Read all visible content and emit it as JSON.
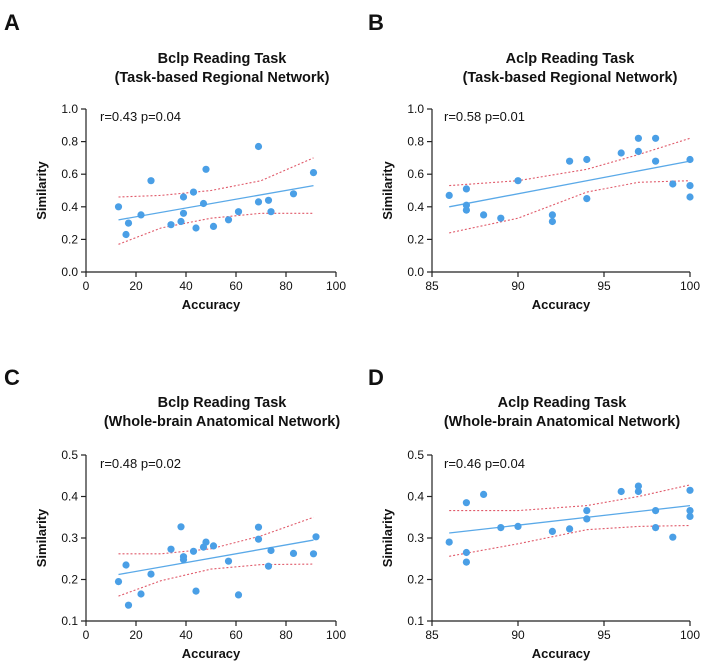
{
  "figure": {
    "panels": [
      "A",
      "B",
      "C",
      "D"
    ]
  },
  "colors": {
    "point": "#4a9fe6",
    "fit_line": "#5aa9e8",
    "ci_band": "#e05a6a",
    "axis": "#222222"
  },
  "chart_data": [
    {
      "panel": "A",
      "type": "scatter",
      "title": [
        "Bclp Reading Task",
        "(Task-based Regional Network)"
      ],
      "xlabel": "Accuracy",
      "ylabel": "Similarity",
      "xlim": [
        0,
        100
      ],
      "ylim": [
        0.0,
        1.0
      ],
      "xticks": [
        0,
        20,
        40,
        60,
        80,
        100
      ],
      "yticks": [
        0.0,
        0.2,
        0.4,
        0.6,
        0.8,
        1.0
      ],
      "xtick_labels": [
        "0",
        "20",
        "40",
        "60",
        "80",
        "100"
      ],
      "ytick_labels": [
        "0.0",
        "0.2",
        "0.4",
        "0.6",
        "0.8",
        "1.0"
      ],
      "annotation": "r=0.43 p=0.04",
      "points": [
        [
          13,
          0.4
        ],
        [
          16,
          0.23
        ],
        [
          17,
          0.3
        ],
        [
          22,
          0.35
        ],
        [
          26,
          0.56
        ],
        [
          34,
          0.29
        ],
        [
          38,
          0.31
        ],
        [
          39,
          0.36
        ],
        [
          39,
          0.46
        ],
        [
          43,
          0.49
        ],
        [
          44,
          0.27
        ],
        [
          47,
          0.42
        ],
        [
          48,
          0.63
        ],
        [
          51,
          0.28
        ],
        [
          57,
          0.32
        ],
        [
          61,
          0.37
        ],
        [
          69,
          0.43
        ],
        [
          69,
          0.77
        ],
        [
          73,
          0.44
        ],
        [
          74,
          0.37
        ],
        [
          83,
          0.48
        ],
        [
          91,
          0.61
        ]
      ],
      "fit": [
        [
          13,
          0.32
        ],
        [
          91,
          0.53
        ]
      ],
      "ci_upper": [
        [
          13,
          0.46
        ],
        [
          30,
          0.47
        ],
        [
          50,
          0.5
        ],
        [
          70,
          0.56
        ],
        [
          91,
          0.7
        ]
      ],
      "ci_lower": [
        [
          13,
          0.17
        ],
        [
          30,
          0.27
        ],
        [
          50,
          0.33
        ],
        [
          70,
          0.36
        ],
        [
          91,
          0.36
        ]
      ]
    },
    {
      "panel": "B",
      "type": "scatter",
      "title": [
        "Aclp Reading Task",
        "(Task-based Regional Network)"
      ],
      "xlabel": "Accuracy",
      "ylabel": "Similarity",
      "xlim": [
        85,
        100
      ],
      "ylim": [
        0.0,
        1.0
      ],
      "xticks": [
        85,
        90,
        95,
        100
      ],
      "yticks": [
        0.0,
        0.2,
        0.4,
        0.6,
        0.8,
        1.0
      ],
      "xtick_labels": [
        "85",
        "90",
        "95",
        "100"
      ],
      "ytick_labels": [
        "0.0",
        "0.2",
        "0.4",
        "0.6",
        "0.8",
        "1.0"
      ],
      "annotation": "r=0.58 p=0.01",
      "points": [
        [
          86,
          0.47
        ],
        [
          87,
          0.51
        ],
        [
          87,
          0.41
        ],
        [
          87,
          0.38
        ],
        [
          88,
          0.35
        ],
        [
          89,
          0.33
        ],
        [
          90,
          0.56
        ],
        [
          92,
          0.35
        ],
        [
          92,
          0.31
        ],
        [
          93,
          0.68
        ],
        [
          94,
          0.69
        ],
        [
          94,
          0.45
        ],
        [
          96,
          0.73
        ],
        [
          97,
          0.82
        ],
        [
          97,
          0.74
        ],
        [
          98,
          0.82
        ],
        [
          98,
          0.68
        ],
        [
          99,
          0.54
        ],
        [
          100,
          0.69
        ],
        [
          100,
          0.53
        ],
        [
          100,
          0.46
        ]
      ],
      "fit": [
        [
          86,
          0.4
        ],
        [
          100,
          0.68
        ]
      ],
      "ci_upper": [
        [
          86,
          0.53
        ],
        [
          90,
          0.56
        ],
        [
          94,
          0.63
        ],
        [
          97,
          0.72
        ],
        [
          100,
          0.82
        ]
      ],
      "ci_lower": [
        [
          86,
          0.24
        ],
        [
          90,
          0.33
        ],
        [
          94,
          0.49
        ],
        [
          97,
          0.55
        ],
        [
          100,
          0.56
        ]
      ]
    },
    {
      "panel": "C",
      "type": "scatter",
      "title": [
        "Bclp Reading Task",
        "(Whole-brain Anatomical Network)"
      ],
      "xlabel": "Accuracy",
      "ylabel": "Similarity",
      "xlim": [
        0,
        100
      ],
      "ylim": [
        0.1,
        0.5
      ],
      "xticks": [
        0,
        20,
        40,
        60,
        80,
        100
      ],
      "yticks": [
        0.1,
        0.2,
        0.3,
        0.4,
        0.5
      ],
      "xtick_labels": [
        "0",
        "20",
        "40",
        "60",
        "80",
        "100"
      ],
      "ytick_labels": [
        "0.1",
        "0.2",
        "0.3",
        "0.4",
        "0.5"
      ],
      "annotation": "r=0.48 p=0.02",
      "points": [
        [
          13,
          0.195
        ],
        [
          16,
          0.235
        ],
        [
          17,
          0.138
        ],
        [
          22,
          0.165
        ],
        [
          26,
          0.213
        ],
        [
          34,
          0.273
        ],
        [
          38,
          0.327
        ],
        [
          39,
          0.248
        ],
        [
          39,
          0.255
        ],
        [
          43,
          0.268
        ],
        [
          44,
          0.172
        ],
        [
          47,
          0.278
        ],
        [
          48,
          0.29
        ],
        [
          51,
          0.281
        ],
        [
          57,
          0.244
        ],
        [
          61,
          0.163
        ],
        [
          69,
          0.297
        ],
        [
          69,
          0.326
        ],
        [
          73,
          0.232
        ],
        [
          74,
          0.27
        ],
        [
          83,
          0.263
        ],
        [
          91,
          0.262
        ],
        [
          92,
          0.303
        ]
      ],
      "fit": [
        [
          13,
          0.212
        ],
        [
          91,
          0.295
        ]
      ],
      "ci_upper": [
        [
          13,
          0.262
        ],
        [
          30,
          0.262
        ],
        [
          50,
          0.274
        ],
        [
          70,
          0.305
        ],
        [
          91,
          0.35
        ]
      ],
      "ci_lower": [
        [
          13,
          0.16
        ],
        [
          30,
          0.197
        ],
        [
          50,
          0.225
        ],
        [
          70,
          0.236
        ],
        [
          91,
          0.237
        ]
      ]
    },
    {
      "panel": "D",
      "type": "scatter",
      "title": [
        "Aclp Reading Task",
        "(Whole-brain Anatomical Network)"
      ],
      "xlabel": "Accuracy",
      "ylabel": "Similarity",
      "xlim": [
        85,
        100
      ],
      "ylim": [
        0.1,
        0.5
      ],
      "xticks": [
        85,
        90,
        95,
        100
      ],
      "yticks": [
        0.1,
        0.2,
        0.3,
        0.4,
        0.5
      ],
      "xtick_labels": [
        "85",
        "90",
        "95",
        "100"
      ],
      "ytick_labels": [
        "0.1",
        "0.2",
        "0.3",
        "0.4",
        "0.5"
      ],
      "annotation": "r=0.46 p=0.04",
      "points": [
        [
          86,
          0.29
        ],
        [
          87,
          0.385
        ],
        [
          87,
          0.265
        ],
        [
          87,
          0.242
        ],
        [
          88,
          0.405
        ],
        [
          89,
          0.325
        ],
        [
          90,
          0.328
        ],
        [
          92,
          0.316
        ],
        [
          93,
          0.322
        ],
        [
          94,
          0.346
        ],
        [
          94,
          0.366
        ],
        [
          96,
          0.412
        ],
        [
          97,
          0.425
        ],
        [
          97,
          0.412
        ],
        [
          98,
          0.366
        ],
        [
          98,
          0.325
        ],
        [
          99,
          0.302
        ],
        [
          100,
          0.415
        ],
        [
          100,
          0.366
        ],
        [
          100,
          0.352
        ]
      ],
      "fit": [
        [
          86,
          0.312
        ],
        [
          100,
          0.378
        ]
      ],
      "ci_upper": [
        [
          86,
          0.366
        ],
        [
          90,
          0.366
        ],
        [
          94,
          0.378
        ],
        [
          97,
          0.4
        ],
        [
          100,
          0.428
        ]
      ],
      "ci_lower": [
        [
          86,
          0.256
        ],
        [
          90,
          0.286
        ],
        [
          94,
          0.32
        ],
        [
          97,
          0.328
        ],
        [
          100,
          0.33
        ]
      ]
    }
  ]
}
